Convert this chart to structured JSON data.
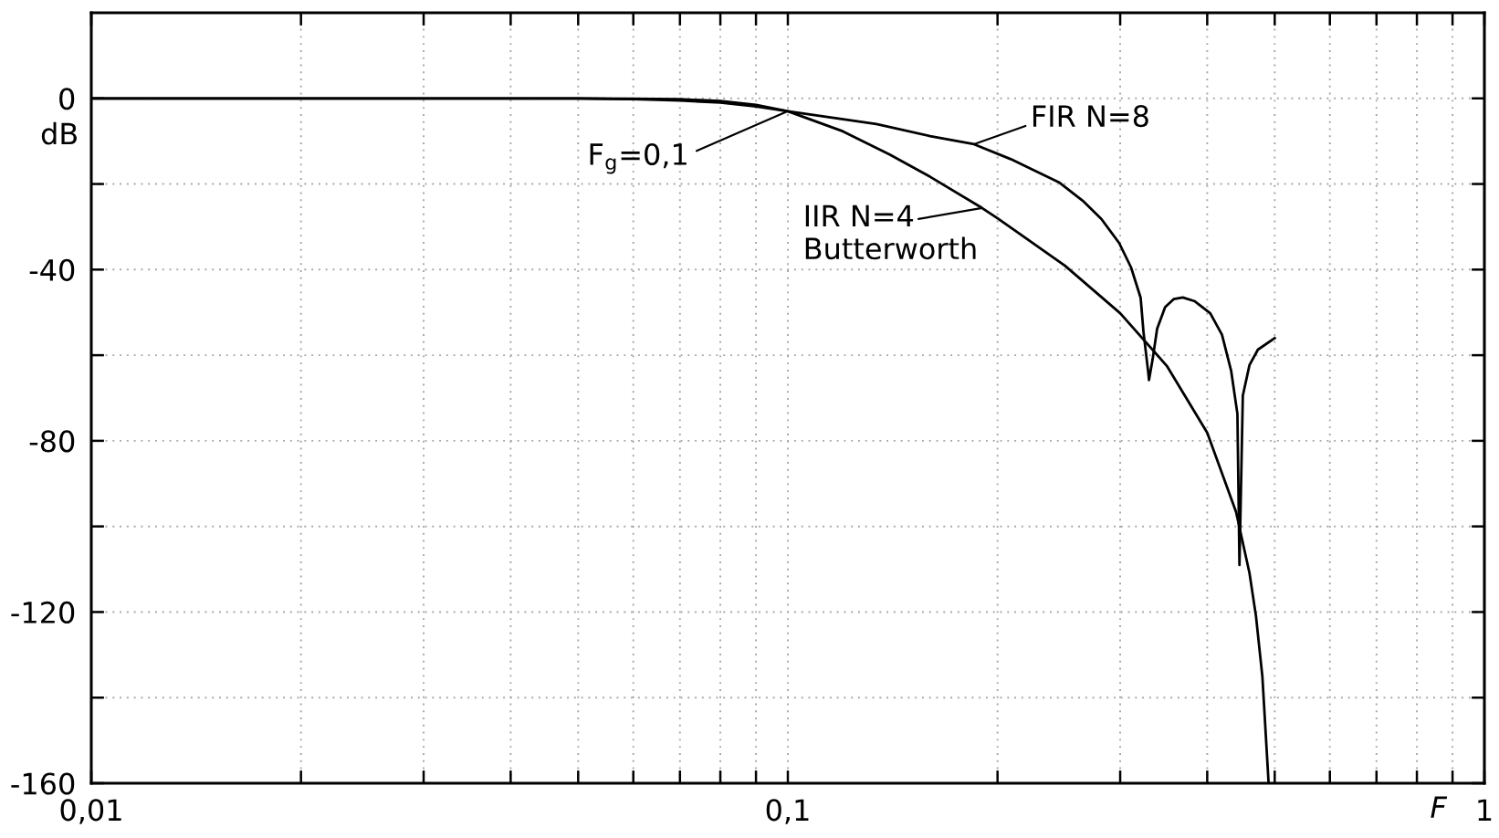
{
  "chart_data": {
    "type": "line",
    "xlabel": "F",
    "ylabel": "dB",
    "log": "x",
    "grid": true,
    "line_style": "solid",
    "xlim": [
      0.01,
      1
    ],
    "xticks": [
      {
        "value": 0.01,
        "label": "0,01"
      },
      {
        "value": 0.02,
        "label": null
      },
      {
        "value": 0.03,
        "label": null
      },
      {
        "value": 0.04,
        "label": null
      },
      {
        "value": 0.05,
        "label": null
      },
      {
        "value": 0.06,
        "label": null
      },
      {
        "value": 0.07,
        "label": null
      },
      {
        "value": 0.08,
        "label": null
      },
      {
        "value": 0.09,
        "label": null
      },
      {
        "value": 0.1,
        "label": "0,1"
      },
      {
        "value": 0.2,
        "label": null
      },
      {
        "value": 0.3,
        "label": null
      },
      {
        "value": 0.4,
        "label": null
      },
      {
        "value": 0.5,
        "label": null
      },
      {
        "value": 0.6,
        "label": null
      },
      {
        "value": 0.7,
        "label": null
      },
      {
        "value": 0.8,
        "label": null
      },
      {
        "value": 0.9,
        "label": null
      },
      1
    ],
    "ylim": [
      -160,
      20
    ],
    "yticks": [
      -160,
      {
        "value": -140,
        "label": null
      },
      -120,
      {
        "value": -100,
        "label": null
      },
      -80,
      {
        "value": -60,
        "label": null
      },
      -40,
      {
        "value": -20,
        "label": null
      },
      0
    ],
    "series": [
      {
        "name": "FIR N=8",
        "color": "#000000",
        "x": [
          0.01,
          0.02,
          0.03,
          0.04,
          0.05,
          0.06,
          0.07,
          0.08,
          0.09,
          0.1,
          0.134,
          0.16,
          0.185,
          0.209,
          0.221,
          0.245,
          0.265,
          0.282,
          0.299,
          0.311,
          0.321,
          0.324,
          0.329,
          0.33,
          0.334,
          0.339,
          0.348,
          0.358,
          0.369,
          0.384,
          0.404,
          0.42,
          0.433,
          0.442,
          0.445,
          0.45,
          0.46,
          0.473,
          0.5
        ],
        "values": [
          0,
          0,
          0,
          0,
          0,
          -0.2,
          -0.5,
          -1.0,
          -1.9,
          -3,
          -6,
          -8.8,
          -10.7,
          -14.2,
          -16.1,
          -19.6,
          -23.9,
          -28.2,
          -33.8,
          -39.5,
          -46.6,
          -54.5,
          -63.7,
          -65.8,
          -60.9,
          -53.8,
          -48.8,
          -46.9,
          -46.5,
          -47.4,
          -50.2,
          -55.2,
          -63.7,
          -73.7,
          -109,
          -69.4,
          -62.3,
          -58.7,
          -56
        ]
      },
      {
        "name": "IIR N=4\nButterworth",
        "color": "#000000",
        "x": [
          0.01,
          0.02,
          0.03,
          0.04,
          0.05,
          0.06,
          0.07,
          0.08,
          0.09,
          0.1,
          0.12,
          0.14,
          0.16,
          0.19,
          0.2,
          0.25,
          0.3,
          0.35,
          0.4,
          0.44,
          0.46,
          0.47,
          0.48,
          0.49
        ],
        "values": [
          0,
          0,
          0,
          0,
          0,
          -0.1,
          -0.2,
          -0.6,
          -1.5,
          -3,
          -7.7,
          -13.1,
          -18.3,
          -25.6,
          -28,
          -39.1,
          -50.2,
          -62.5,
          -78.1,
          -96.6,
          -110.9,
          -121,
          -135,
          -160
        ]
      }
    ],
    "annotations": [
      {
        "text": "F$_{g}$=0,1",
        "x": 0.1,
        "y": -3
      }
    ]
  }
}
